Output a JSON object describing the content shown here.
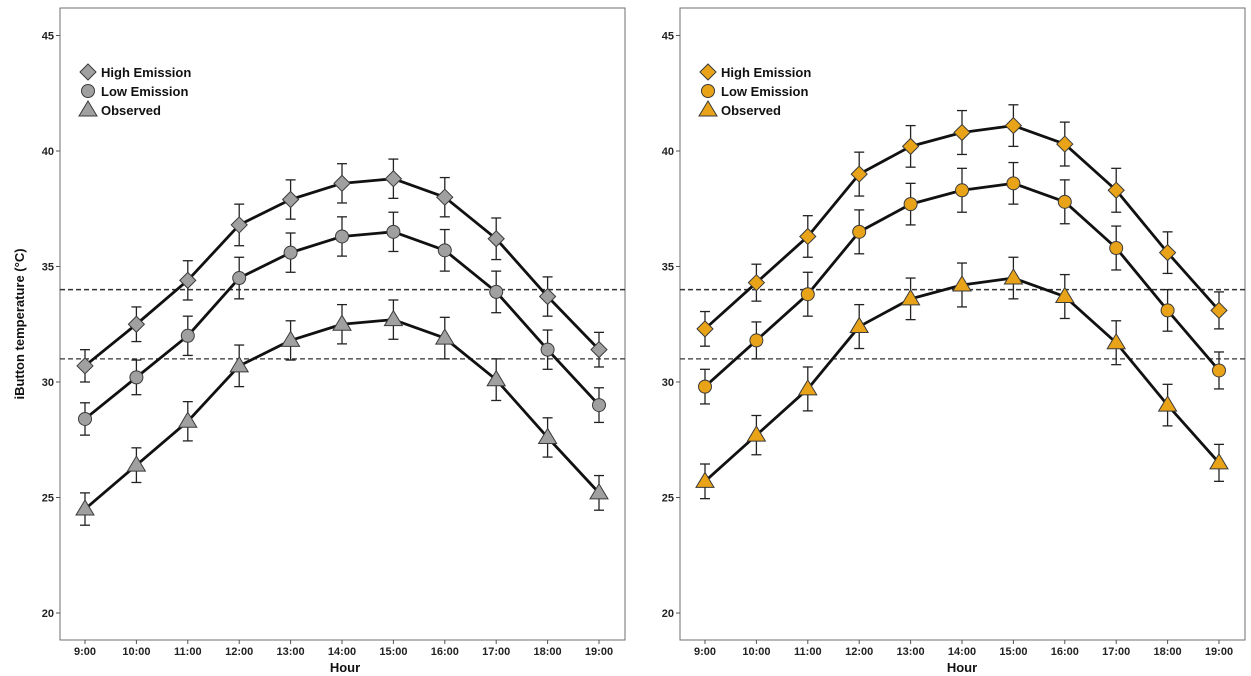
{
  "chart_data": [
    {
      "type": "line",
      "ylabel": "iButton temperature (°C)",
      "xlabel": "Hour",
      "categories": [
        "9:00",
        "10:00",
        "11:00",
        "12:00",
        "13:00",
        "14:00",
        "15:00",
        "16:00",
        "17:00",
        "18:00",
        "19:00"
      ],
      "yticks": [
        "20",
        "25",
        "30",
        "35",
        "40",
        "45"
      ],
      "ylim": [
        20,
        45
      ],
      "fill_color": "#a0a0a0",
      "reference_lines": [
        34,
        31
      ],
      "series": [
        {
          "name": "High Emission",
          "marker": "diamond",
          "values": [
            30.7,
            32.5,
            34.4,
            36.8,
            37.9,
            38.6,
            38.8,
            38.0,
            36.2,
            33.7,
            31.4
          ],
          "errors": [
            0.7,
            0.75,
            0.85,
            0.9,
            0.85,
            0.85,
            0.85,
            0.85,
            0.9,
            0.85,
            0.75
          ]
        },
        {
          "name": "Low Emission",
          "marker": "circle",
          "values": [
            28.4,
            30.2,
            32.0,
            34.5,
            35.6,
            36.3,
            36.5,
            35.7,
            33.9,
            31.4,
            29.0
          ],
          "errors": [
            0.7,
            0.75,
            0.85,
            0.9,
            0.85,
            0.85,
            0.85,
            0.9,
            0.9,
            0.85,
            0.75
          ]
        },
        {
          "name": "Observed",
          "marker": "triangle",
          "values": [
            24.5,
            26.4,
            28.3,
            30.7,
            31.8,
            32.5,
            32.7,
            31.9,
            30.1,
            27.6,
            25.2
          ],
          "errors": [
            0.7,
            0.75,
            0.85,
            0.9,
            0.85,
            0.85,
            0.85,
            0.9,
            0.9,
            0.85,
            0.75
          ]
        }
      ]
    },
    {
      "type": "line",
      "ylabel": "",
      "xlabel": "Hour",
      "categories": [
        "9:00",
        "10:00",
        "11:00",
        "12:00",
        "13:00",
        "14:00",
        "15:00",
        "16:00",
        "17:00",
        "18:00",
        "19:00"
      ],
      "yticks": [
        "20",
        "25",
        "30",
        "35",
        "40",
        "45"
      ],
      "ylim": [
        20,
        45
      ],
      "fill_color": "#e8a318",
      "reference_lines": [
        34,
        31
      ],
      "series": [
        {
          "name": "High Emission",
          "marker": "diamond",
          "values": [
            32.3,
            34.3,
            36.3,
            39.0,
            40.2,
            40.8,
            41.1,
            40.3,
            38.3,
            35.6,
            33.1
          ],
          "errors": [
            0.75,
            0.8,
            0.9,
            0.95,
            0.9,
            0.95,
            0.9,
            0.95,
            0.95,
            0.9,
            0.8
          ]
        },
        {
          "name": "Low Emission",
          "marker": "circle",
          "values": [
            29.8,
            31.8,
            33.8,
            36.5,
            37.7,
            38.3,
            38.6,
            37.8,
            35.8,
            33.1,
            30.5
          ],
          "errors": [
            0.75,
            0.8,
            0.95,
            0.95,
            0.9,
            0.95,
            0.9,
            0.95,
            0.95,
            0.9,
            0.8
          ]
        },
        {
          "name": "Observed",
          "marker": "triangle",
          "values": [
            25.7,
            27.7,
            29.7,
            32.4,
            33.6,
            34.2,
            34.5,
            33.7,
            31.7,
            29.0,
            26.5
          ],
          "errors": [
            0.75,
            0.85,
            0.95,
            0.95,
            0.9,
            0.95,
            0.9,
            0.95,
            0.95,
            0.9,
            0.8
          ]
        }
      ]
    }
  ]
}
